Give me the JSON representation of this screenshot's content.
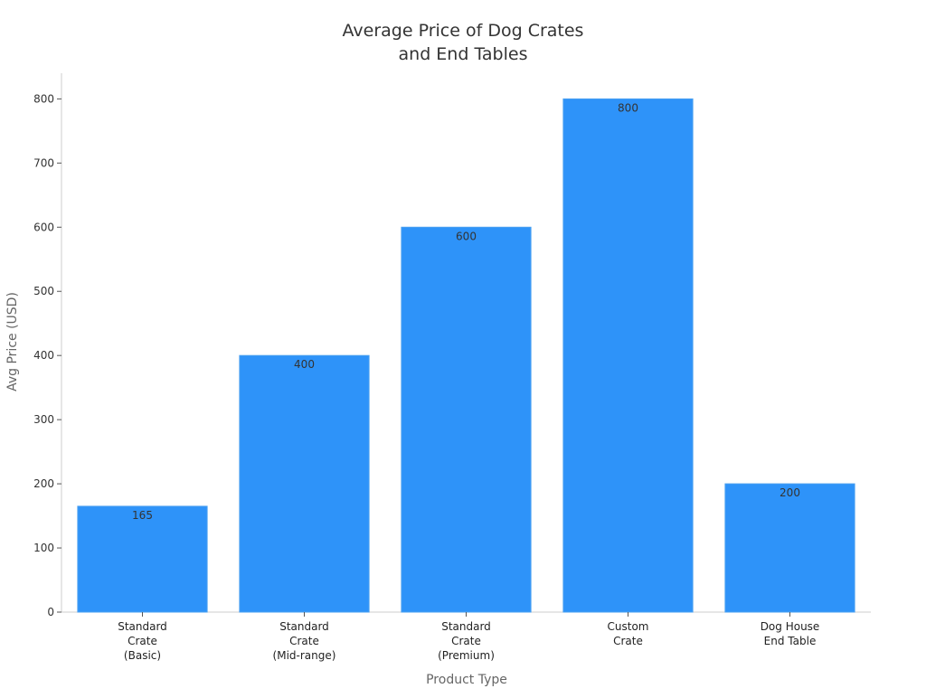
{
  "chart_data": {
    "type": "bar",
    "title": [
      "Average Price of Dog Crates",
      "and End Tables"
    ],
    "xlabel": "Product Type",
    "ylabel": "Avg Price (USD)",
    "categories": [
      [
        "Standard",
        "Crate",
        "(Basic)"
      ],
      [
        "Standard",
        "Crate",
        "(Mid-range)"
      ],
      [
        "Standard",
        "Crate",
        "(Premium)"
      ],
      [
        "Custom",
        "Crate"
      ],
      [
        "Dog House",
        "End Table"
      ]
    ],
    "values": [
      165,
      400,
      600,
      800,
      200
    ],
    "data_labels": [
      "165",
      "400",
      "600",
      "800",
      "200"
    ],
    "ylim": [
      0,
      840
    ],
    "yticks": [
      0,
      100,
      200,
      300,
      400,
      500,
      600,
      700,
      800
    ],
    "grid": false,
    "legend": "none",
    "colors": {
      "bar": "#2e93f9",
      "bar_edge": "#4aa0f0",
      "axis": "#cccccc",
      "tick": "#555555",
      "text": "#333333"
    }
  }
}
